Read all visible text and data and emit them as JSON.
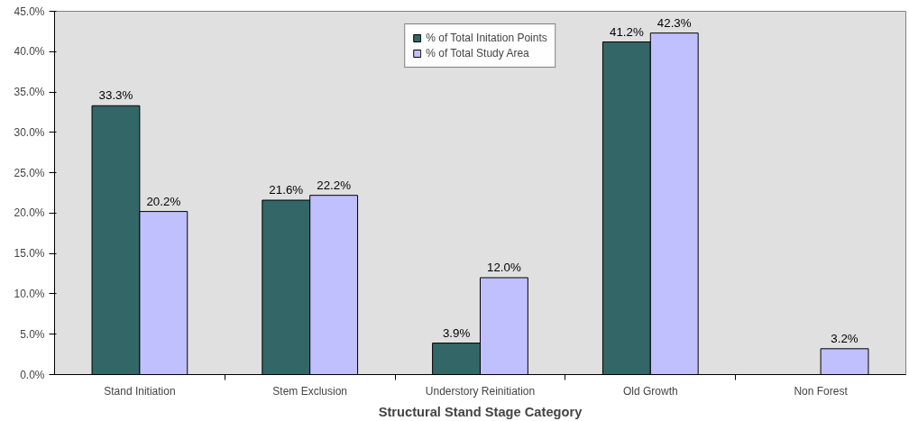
{
  "chart_data": {
    "type": "bar",
    "xlabel": "Structural Stand Stage Category",
    "categories": [
      "Stand Initiation",
      "Stem Exclusion",
      "Understory Reinitiation",
      "Old Growth",
      "Non Forest"
    ],
    "series": [
      {
        "name": "% of Total Initation Points",
        "color": "#336666",
        "values": [
          33.3,
          21.6,
          3.9,
          41.2,
          null
        ],
        "value_labels": [
          "33.3%",
          "21.6%",
          "3.9%",
          "41.2%",
          null
        ]
      },
      {
        "name": "% of Total Study Area",
        "color": "#c0c0ff",
        "values": [
          20.2,
          22.2,
          12.0,
          42.3,
          3.2
        ],
        "value_labels": [
          "20.2%",
          "22.2%",
          "12.0%",
          "42.3%",
          "3.2%"
        ]
      }
    ],
    "ylim": [
      0,
      45
    ],
    "yticks": [
      {
        "value": 0,
        "label": "0.0%"
      },
      {
        "value": 5,
        "label": "5.0%"
      },
      {
        "value": 10,
        "label": "10.0%"
      },
      {
        "value": 15,
        "label": "15.0%"
      },
      {
        "value": 20,
        "label": "20.0%"
      },
      {
        "value": 25,
        "label": "25.0%"
      },
      {
        "value": 30,
        "label": "30.0%"
      },
      {
        "value": 35,
        "label": "35.0%"
      },
      {
        "value": 40,
        "label": "40.0%"
      },
      {
        "value": 45,
        "label": "45.0%"
      }
    ],
    "legend": "top",
    "grid": false
  }
}
